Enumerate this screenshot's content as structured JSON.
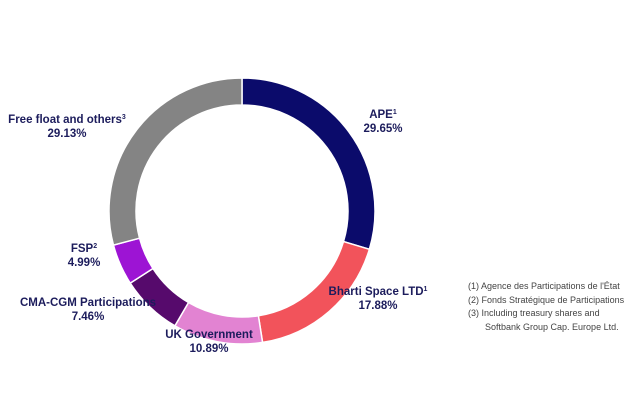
{
  "chart_data": {
    "type": "pie",
    "donut": true,
    "start": "top",
    "direction": "clockwise",
    "slices": [
      {
        "label": "APE",
        "sup": "1",
        "value": 29.65,
        "display": "29.65%",
        "color": "#0b0b6b"
      },
      {
        "label": "Bharti Space LTD",
        "sup": "1",
        "value": 17.88,
        "display": "17.88%",
        "color": "#f2535b"
      },
      {
        "label": "UK Government",
        "sup": "",
        "value": 10.89,
        "display": "10.89%",
        "color": "#e283d2"
      },
      {
        "label": "CMA-CGM Participations",
        "sup": "",
        "value": 7.46,
        "display": "7.46%",
        "color": "#560a6c"
      },
      {
        "label": "FSP",
        "sup": "2",
        "value": 4.99,
        "display": "4.99%",
        "color": "#9d14d4"
      },
      {
        "label": "Free float and others",
        "sup": "3",
        "value": 29.13,
        "display": "29.13%",
        "color": "#848484"
      }
    ]
  },
  "footnotes": [
    "(1)  Agence des Participations de l'État",
    "(2)  Fonds Stratégique de Participations",
    "(3)  Including treasury shares and",
    "Softbank Group Cap. Europe Ltd."
  ]
}
